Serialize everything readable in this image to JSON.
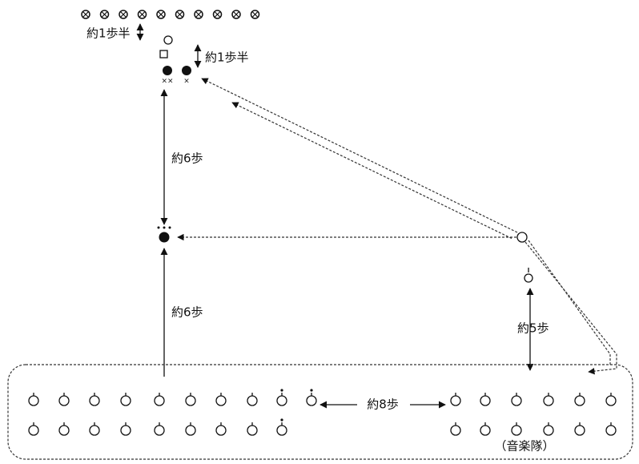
{
  "labels": {
    "top_step": "約1歩半",
    "right_step": "約1歩半",
    "upper_six": "約6歩",
    "lower_six": "約6歩",
    "five": "約5歩",
    "eight": "約8歩",
    "band": "（音楽隊）",
    "double_x": "××",
    "single_x": "×"
  }
}
